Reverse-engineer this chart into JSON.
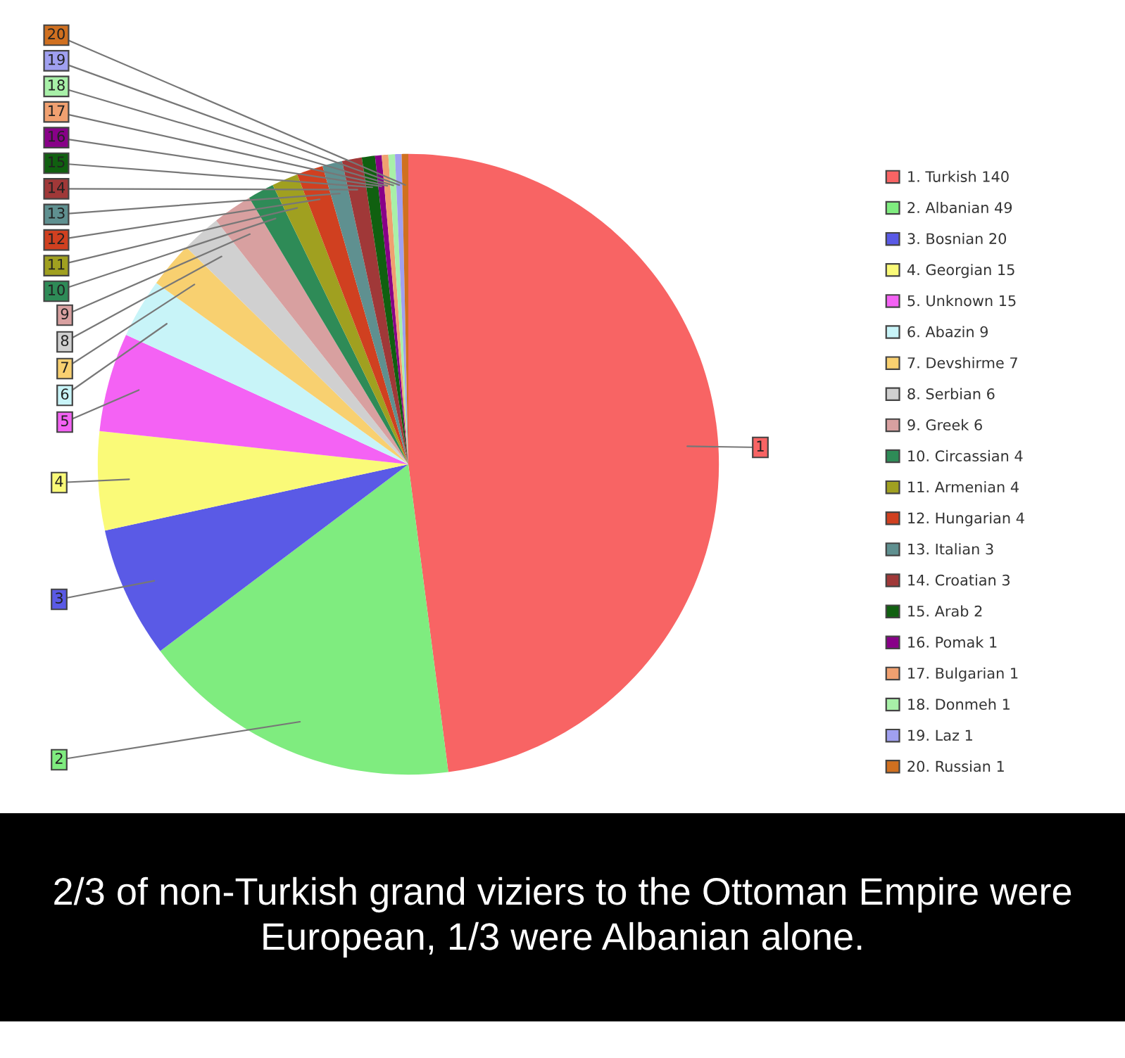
{
  "chart_data": {
    "type": "pie",
    "categories": [
      "1. Turkish 140",
      "2. Albanian 49",
      "3. Bosnian 20",
      "4. Georgian 15",
      "5. Unknown 15",
      "6. Abazin 9",
      "7. Devshirme 7",
      "8. Serbian 6",
      "9. Greek 6",
      "10. Circassian 4",
      "11. Armenian 4",
      "12. Hungarian 4",
      "13. Italian 3",
      "14. Croatian 3",
      "15. Arab 2",
      "16. Pomak 1",
      "17. Bulgarian 1",
      "18. Donmeh 1",
      "19. Laz 1",
      "20. Russian 1"
    ],
    "values": [
      140,
      49,
      20,
      15,
      15,
      9,
      7,
      6,
      6,
      4,
      4,
      4,
      3,
      3,
      2,
      1,
      1,
      1,
      1,
      1
    ],
    "colors": [
      "#f86464",
      "#7fec7f",
      "#5a5ae6",
      "#fafa78",
      "#f462f4",
      "#c8f4f8",
      "#f8d070",
      "#d0d0d0",
      "#d8a0a0",
      "#2e8b57",
      "#a0a020",
      "#d04020",
      "#5f9090",
      "#a03838",
      "#106010",
      "#880088",
      "#f0a070",
      "#a8f0a8",
      "#a0a0f0",
      "#d07020"
    ],
    "legend": "right",
    "annotations": [
      {
        "text": "1",
        "x": "1. Turkish 140"
      },
      {
        "text": "2",
        "x": "2. Albanian 49"
      },
      {
        "text": "3",
        "x": "3. Bosnian 20"
      },
      {
        "text": "4",
        "x": "4. Georgian 15"
      },
      {
        "text": "5",
        "x": "5. Unknown 15"
      },
      {
        "text": "6",
        "x": "6. Abazin 9"
      },
      {
        "text": "7",
        "x": "7. Devshirme 7"
      },
      {
        "text": "8",
        "x": "8. Serbian 6"
      },
      {
        "text": "9",
        "x": "9. Greek 6"
      },
      {
        "text": "10",
        "x": "10. Circassian 4"
      },
      {
        "text": "11",
        "x": "11. Armenian 4"
      },
      {
        "text": "12",
        "x": "12. Hungarian 4"
      },
      {
        "text": "13",
        "x": "13. Italian 3"
      },
      {
        "text": "14",
        "x": "14. Croatian 3"
      },
      {
        "text": "15",
        "x": "15. Arab 2"
      },
      {
        "text": "16",
        "x": "16. Pomak 1"
      },
      {
        "text": "17",
        "x": "17. Bulgarian 1"
      },
      {
        "text": "18",
        "x": "18. Donmeh 1"
      },
      {
        "text": "19",
        "x": "19. Laz 1"
      },
      {
        "text": "20",
        "x": "20. Russian 1"
      },
      "2/3 of non-Turkish grand viziers to the Ottoman Empire were European, 1/3 were Albanian alone."
    ]
  }
}
